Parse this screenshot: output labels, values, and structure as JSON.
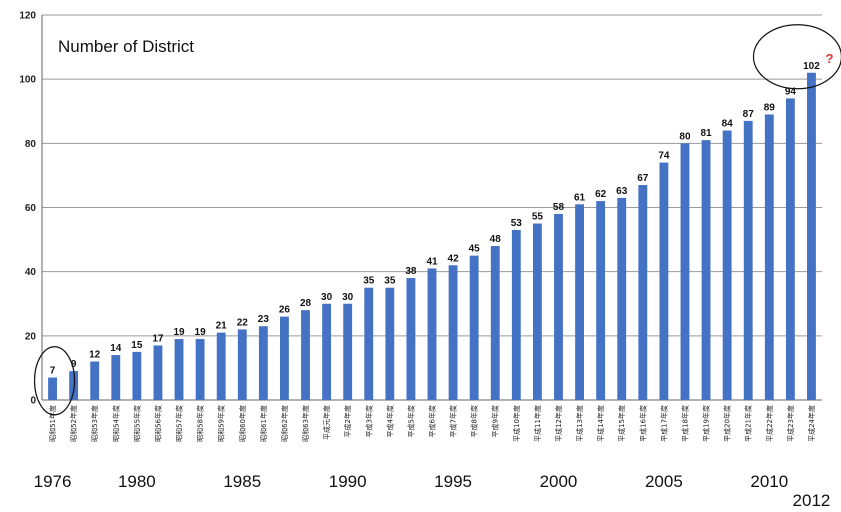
{
  "chart_data": {
    "type": "bar",
    "title": "Number of District",
    "ylim": [
      0,
      120
    ],
    "yticks": [
      0,
      20,
      40,
      60,
      80,
      100,
      120
    ],
    "grid": true,
    "bar_color": "#4472c4",
    "categories": [
      "昭和51年度",
      "昭和52年度",
      "昭和53年度",
      "昭和54年度",
      "昭和55年度",
      "昭和56年度",
      "昭和57年度",
      "昭和58年度",
      "昭和59年度",
      "昭和60年度",
      "昭和61年度",
      "昭和62年度",
      "昭和63年度",
      "平成元年度",
      "平成2年度",
      "平成3年度",
      "平成4年度",
      "平成5年度",
      "平成6年度",
      "平成7年度",
      "平成8年度",
      "平成9年度",
      "平成10年度",
      "平成11年度",
      "平成12年度",
      "平成13年度",
      "平成14年度",
      "平成15年度",
      "平成16年度",
      "平成17年度",
      "平成18年度",
      "平成19年度",
      "平成20年度",
      "平成21年度",
      "平成22年度",
      "平成23年度",
      "平成24年度"
    ],
    "values": [
      7,
      9,
      12,
      14,
      15,
      17,
      19,
      19,
      21,
      22,
      23,
      26,
      28,
      30,
      30,
      35,
      35,
      38,
      41,
      42,
      45,
      48,
      53,
      55,
      58,
      61,
      62,
      63,
      67,
      74,
      80,
      81,
      84,
      87,
      89,
      94,
      102
    ],
    "year_annotations": [
      {
        "label": "1976",
        "index": 0
      },
      {
        "label": "1980",
        "index": 4
      },
      {
        "label": "1985",
        "index": 9
      },
      {
        "label": "1990",
        "index": 14
      },
      {
        "label": "1995",
        "index": 19
      },
      {
        "label": "2000",
        "index": 24
      },
      {
        "label": "2005",
        "index": 29
      },
      {
        "label": "2010",
        "index": 34
      },
      {
        "label": "2012",
        "index": 36
      }
    ],
    "annotation_mark": "?",
    "highlight_color": "#111111",
    "mark_color": "#e0342c"
  }
}
